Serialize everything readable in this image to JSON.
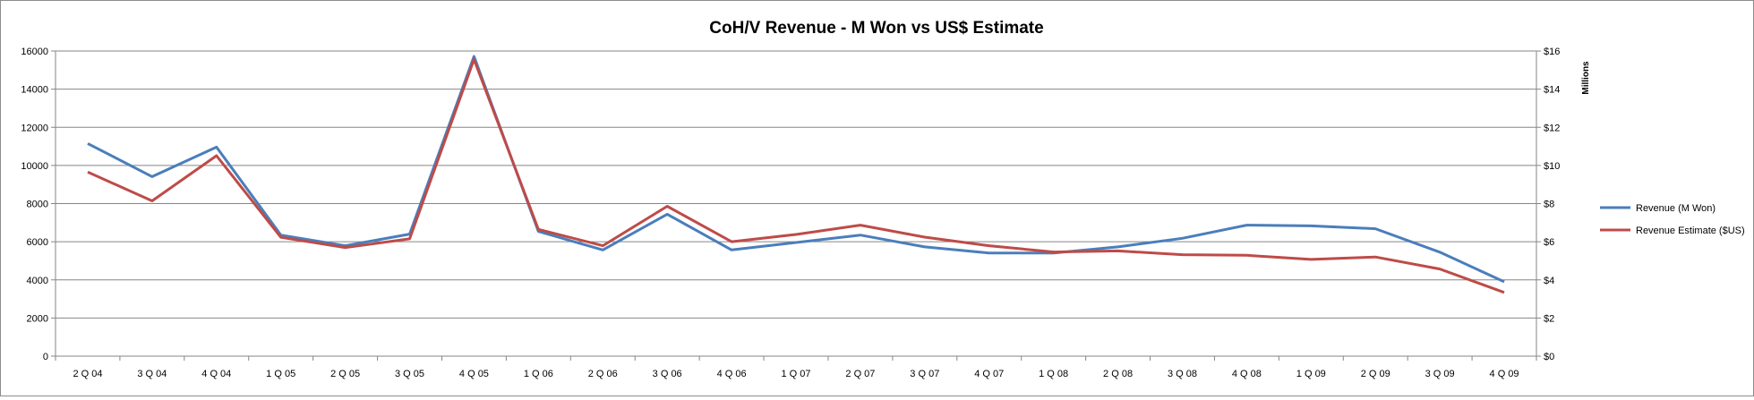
{
  "chart_data": {
    "type": "line",
    "title": "CoH/V Revenue - M Won vs US$ Estimate",
    "xlabel": "",
    "ylabel": "",
    "y2label": "Millions",
    "ylim": [
      0,
      16000
    ],
    "y2lim": [
      0,
      16
    ],
    "yticks": [
      "0",
      "2000",
      "4000",
      "6000",
      "8000",
      "10000",
      "12000",
      "14000",
      "16000"
    ],
    "y2ticks": [
      "$0",
      "$2",
      "$4",
      "$6",
      "$8",
      "$10",
      "$12",
      "$14",
      "$16"
    ],
    "grid": true,
    "legend_position": "right",
    "categories": [
      "2 Q 04",
      "3 Q 04",
      "4 Q 04",
      "1 Q 05",
      "2 Q 05",
      "3 Q 05",
      "4 Q 05",
      "1 Q 06",
      "2 Q 06",
      "3 Q 06",
      "4 Q 06",
      "1 Q 07",
      "2 Q 07",
      "3 Q 07",
      "4 Q 07",
      "1 Q 08",
      "2 Q 08",
      "3 Q 08",
      "4 Q 08",
      "1 Q 09",
      "2 Q 09",
      "3 Q 09",
      "4 Q 09"
    ],
    "series": [
      {
        "name": "Revenue (M Won)",
        "axis": "left",
        "color": "#4a7ebb",
        "values": [
          11150,
          9410,
          10960,
          6350,
          5790,
          6400,
          15720,
          6540,
          5570,
          7440,
          5570,
          5960,
          6350,
          5730,
          5410,
          5410,
          5730,
          6180,
          6870,
          6830,
          6680,
          5450,
          3900
        ]
      },
      {
        "name": "Revenue Estimate  ($US)",
        "axis": "right",
        "color": "#be4b48",
        "values": [
          9.65,
          8.14,
          10.51,
          6.23,
          5.69,
          6.15,
          15.56,
          6.65,
          5.79,
          7.86,
          6.0,
          6.38,
          6.87,
          6.24,
          5.79,
          5.46,
          5.52,
          5.32,
          5.29,
          5.07,
          5.2,
          4.57,
          3.34
        ]
      }
    ]
  }
}
